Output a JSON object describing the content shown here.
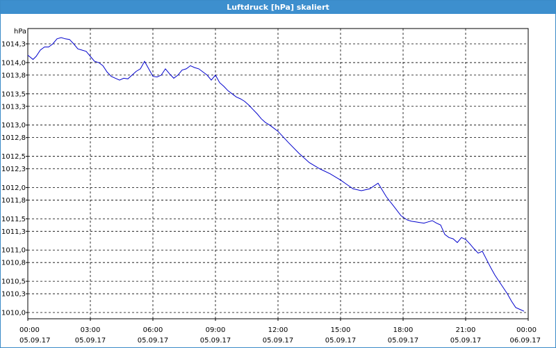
{
  "window": {
    "title": "Luftdruck [hPa] skaliert"
  },
  "colors": {
    "titlebar": "#3d8fce",
    "line": "#0000cc",
    "grid": "#000000"
  },
  "chart_data": {
    "type": "line",
    "title": "Luftdruck [hPa] skaliert",
    "ylabel": "hPa",
    "xlabel": "",
    "ylim": [
      1010.0,
      1014.3
    ],
    "xlim_hours": [
      0,
      24
    ],
    "grid": true,
    "y_ticks": [
      {
        "value": 1014.3,
        "label": "1014,3"
      },
      {
        "value": 1014.0,
        "label": "1014,0"
      },
      {
        "value": 1013.8,
        "label": "1013,8"
      },
      {
        "value": 1013.5,
        "label": "1013,5"
      },
      {
        "value": 1013.3,
        "label": "1013,3"
      },
      {
        "value": 1013.0,
        "label": "1013,0"
      },
      {
        "value": 1012.8,
        "label": "1012,8"
      },
      {
        "value": 1012.5,
        "label": "1012,5"
      },
      {
        "value": 1012.3,
        "label": "1012,3"
      },
      {
        "value": 1012.0,
        "label": "1012,0"
      },
      {
        "value": 1011.8,
        "label": "1011,8"
      },
      {
        "value": 1011.5,
        "label": "1011,5"
      },
      {
        "value": 1011.3,
        "label": "1011,3"
      },
      {
        "value": 1011.0,
        "label": "1011,0"
      },
      {
        "value": 1010.8,
        "label": "1010,8"
      },
      {
        "value": 1010.5,
        "label": "1010,5"
      },
      {
        "value": 1010.3,
        "label": "1010,3"
      },
      {
        "value": 1010.0,
        "label": "1010,0"
      }
    ],
    "x_ticks": [
      {
        "time": "00:00",
        "date": "05.09.17"
      },
      {
        "time": "03:00",
        "date": "05.09.17"
      },
      {
        "time": "06:00",
        "date": "05.09.17"
      },
      {
        "time": "09:00",
        "date": "05.09.17"
      },
      {
        "time": "12:00",
        "date": "05.09.17"
      },
      {
        "time": "15:00",
        "date": "05.09.17"
      },
      {
        "time": "18:00",
        "date": "05.09.17"
      },
      {
        "time": "21:00",
        "date": "05.09.17"
      },
      {
        "time": "00:00",
        "date": "06.09.17"
      }
    ],
    "series": [
      {
        "x_hours": [
          0,
          0.25,
          0.4,
          0.6,
          0.8,
          1.0,
          1.2,
          1.4,
          1.6,
          1.8,
          2.0,
          2.2,
          2.4,
          2.6,
          2.8,
          3.0,
          3.2,
          3.4,
          3.6,
          3.8,
          4.0,
          4.2,
          4.4,
          4.6,
          4.8,
          5.0,
          5.2,
          5.4,
          5.6,
          5.8,
          6.0,
          6.2,
          6.4,
          6.6,
          6.8,
          7.0,
          7.2,
          7.4,
          7.6,
          7.8,
          8.0,
          8.2,
          8.4,
          8.6,
          8.8,
          9.0,
          9.2,
          9.4,
          9.6,
          9.8,
          10.0,
          10.2,
          10.4,
          10.6,
          10.8,
          11.0,
          11.2,
          11.4,
          11.6,
          11.8,
          12.0,
          12.5,
          13.0,
          13.5,
          14.0,
          14.5,
          15.0,
          15.3,
          15.6,
          16.0,
          16.4,
          16.8,
          17.2,
          17.6,
          17.9,
          18.2,
          18.4,
          18.6,
          18.8,
          19.0,
          19.2,
          19.4,
          19.6,
          19.8,
          20.0,
          20.2,
          20.4,
          20.6,
          20.8,
          21.0,
          21.2,
          21.4,
          21.6,
          21.8,
          22.0,
          22.2,
          22.4,
          22.6,
          22.8,
          23.0,
          23.2,
          23.4,
          23.6,
          23.8
        ],
        "y": [
          1014.12,
          1014.05,
          1014.1,
          1014.2,
          1014.25,
          1014.25,
          1014.3,
          1014.38,
          1014.4,
          1014.38,
          1014.37,
          1014.3,
          1014.22,
          1014.2,
          1014.18,
          1014.1,
          1014.02,
          1014.0,
          1013.95,
          1013.85,
          1013.78,
          1013.75,
          1013.72,
          1013.75,
          1013.74,
          1013.8,
          1013.86,
          1013.9,
          1014.02,
          1013.9,
          1013.78,
          1013.77,
          1013.8,
          1013.9,
          1013.82,
          1013.75,
          1013.8,
          1013.88,
          1013.9,
          1013.95,
          1013.92,
          1013.9,
          1013.85,
          1013.8,
          1013.72,
          1013.8,
          1013.68,
          1013.62,
          1013.55,
          1013.5,
          1013.45,
          1013.42,
          1013.38,
          1013.32,
          1013.25,
          1013.18,
          1013.1,
          1013.04,
          1013.0,
          1012.95,
          1012.9,
          1012.72,
          1012.55,
          1012.4,
          1012.3,
          1012.22,
          1012.12,
          1012.05,
          1011.98,
          1011.95,
          1011.98,
          1012.07,
          1011.85,
          1011.68,
          1011.55,
          1011.48,
          1011.46,
          1011.45,
          1011.44,
          1011.43,
          1011.45,
          1011.47,
          1011.43,
          1011.4,
          1011.25,
          1011.2,
          1011.18,
          1011.12,
          1011.2,
          1011.17,
          1011.1,
          1011.02,
          1010.95,
          1010.98,
          1010.85,
          1010.72,
          1010.6,
          1010.5,
          1010.4,
          1010.3,
          1010.18,
          1010.08,
          1010.05,
          1010.02
        ]
      }
    ]
  }
}
